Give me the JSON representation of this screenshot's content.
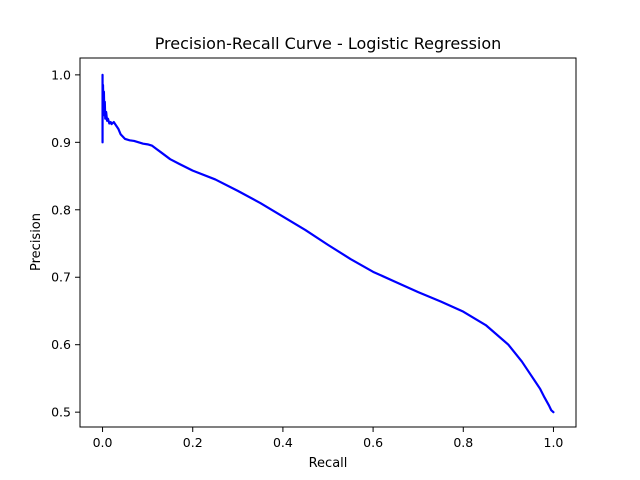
{
  "chart_data": {
    "type": "line",
    "title": "Precision-Recall Curve - Logistic Regression",
    "xlabel": "Recall",
    "ylabel": "Precision",
    "xlim": [
      -0.05,
      1.05
    ],
    "ylim": [
      0.478,
      1.025
    ],
    "grid": false,
    "legend": "none",
    "color": "#0000ff",
    "xticks": [
      {
        "value": 0.0,
        "label": "0.0"
      },
      {
        "value": 0.2,
        "label": "0.2"
      },
      {
        "value": 0.4,
        "label": "0.4"
      },
      {
        "value": 0.6,
        "label": "0.6"
      },
      {
        "value": 0.8,
        "label": "0.8"
      },
      {
        "value": 1.0,
        "label": "1.0"
      }
    ],
    "yticks": [
      {
        "value": 0.5,
        "label": "0.5"
      },
      {
        "value": 0.6,
        "label": "0.6"
      },
      {
        "value": 0.7,
        "label": "0.7"
      },
      {
        "value": 0.8,
        "label": "0.8"
      },
      {
        "value": 0.9,
        "label": "0.9"
      },
      {
        "value": 1.0,
        "label": "1.0"
      }
    ],
    "series": [
      {
        "x": [
          0.0,
          0.0,
          0.0,
          0.001,
          0.002,
          0.003,
          0.004,
          0.005,
          0.006,
          0.008,
          0.01,
          0.012,
          0.015,
          0.018,
          0.02,
          0.025,
          0.03,
          0.035,
          0.04,
          0.05,
          0.06,
          0.07,
          0.08,
          0.09,
          0.1,
          0.11,
          0.12,
          0.13,
          0.15,
          0.17,
          0.2,
          0.25,
          0.3,
          0.35,
          0.4,
          0.45,
          0.5,
          0.55,
          0.6,
          0.65,
          0.7,
          0.75,
          0.8,
          0.85,
          0.9,
          0.93,
          0.95,
          0.97,
          0.98,
          0.99,
          0.995,
          1.0
        ],
        "y": [
          0.9,
          1.0,
          0.94,
          0.985,
          0.95,
          0.975,
          0.94,
          0.96,
          0.935,
          0.945,
          0.932,
          0.935,
          0.928,
          0.93,
          0.927,
          0.93,
          0.925,
          0.92,
          0.912,
          0.905,
          0.903,
          0.902,
          0.9,
          0.898,
          0.897,
          0.895,
          0.89,
          0.885,
          0.875,
          0.868,
          0.858,
          0.845,
          0.828,
          0.81,
          0.79,
          0.77,
          0.748,
          0.727,
          0.708,
          0.693,
          0.678,
          0.664,
          0.649,
          0.629,
          0.6,
          0.575,
          0.555,
          0.535,
          0.522,
          0.51,
          0.503,
          0.5
        ]
      }
    ]
  }
}
